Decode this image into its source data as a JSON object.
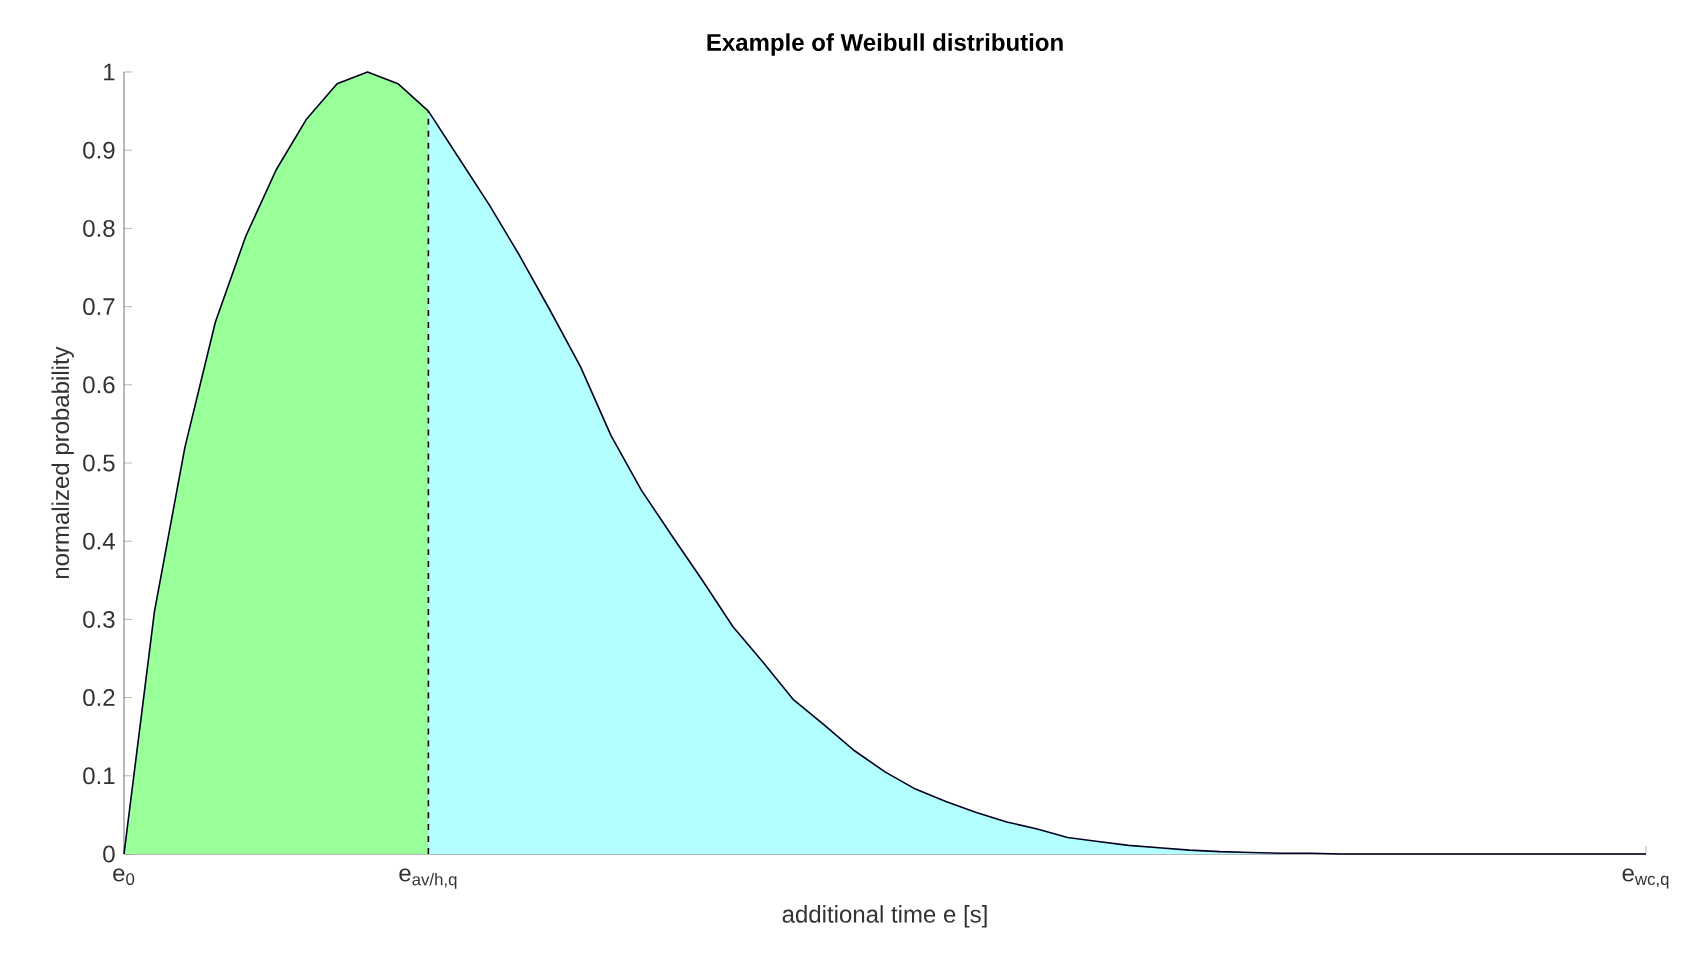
{
  "chart_data": {
    "type": "area",
    "title": "Example of Weibull distribution",
    "xlabel": "additional time e [s]",
    "ylabel": "normalized probability",
    "categories": [
      "e$_{0}$",
      null,
      null,
      null,
      null,
      null,
      null,
      null,
      null,
      null,
      "e$_{av/h,q}$",
      null,
      null,
      null,
      null,
      null,
      null,
      null,
      null,
      null,
      null,
      null,
      null,
      null,
      null,
      null,
      null,
      null,
      null,
      null,
      null,
      null,
      null,
      null,
      null,
      null,
      null,
      null,
      null,
      null,
      null,
      null,
      null,
      null,
      null,
      null,
      null,
      null,
      null,
      null,
      "e$_{wc,q}$"
    ],
    "ylim": [
      0,
      1
    ],
    "yticks": [
      0,
      0.1,
      0.2,
      0.3,
      0.4,
      0.5,
      0.6,
      0.7,
      0.8,
      0.9,
      1
    ],
    "series": [
      {
        "color": "#99ff99",
        "values": [
          0,
          0.31,
          0.52,
          0.68,
          0.79,
          0.875,
          0.94,
          0.985,
          1.0,
          0.985,
          0.95,
          null,
          null,
          null,
          null,
          null,
          null,
          null,
          null,
          null,
          null,
          null,
          null,
          null,
          null,
          null,
          null,
          null,
          null,
          null,
          null,
          null,
          null,
          null,
          null,
          null,
          null,
          null,
          null,
          null,
          null,
          null,
          null,
          null,
          null,
          null,
          null,
          null,
          null,
          null,
          null
        ]
      },
      {
        "color": "#b3ffff",
        "values": [
          null,
          null,
          null,
          null,
          null,
          null,
          null,
          null,
          null,
          null,
          0.95,
          0.89,
          0.83,
          0.765,
          0.695,
          0.623,
          0.535,
          0.465,
          0.407,
          0.35,
          0.291,
          0.245,
          0.197,
          0.165,
          0.132,
          0.105,
          0.083,
          0.067,
          0.053,
          0.041,
          0.032,
          0.021,
          0.016,
          0.011,
          0.008,
          0.005,
          0.003,
          0.002,
          0.001,
          0.001,
          0,
          0,
          0,
          0,
          0,
          0,
          0,
          0,
          0,
          0,
          0
        ]
      },
      {
        "type": "line",
        "color": "#000022",
        "values": [
          0,
          0.31,
          0.52,
          0.68,
          0.79,
          0.875,
          0.94,
          0.985,
          1.0,
          0.985,
          0.95,
          0.89,
          0.83,
          0.765,
          0.695,
          0.623,
          0.535,
          0.465,
          0.407,
          0.35,
          0.291,
          0.245,
          0.197,
          0.165,
          0.132,
          0.105,
          0.083,
          0.067,
          0.053,
          0.041,
          0.032,
          0.021,
          0.016,
          0.011,
          0.008,
          0.005,
          0.003,
          0.002,
          0.001,
          0.001,
          0,
          0,
          0,
          0,
          0,
          0,
          0,
          0,
          0,
          0,
          0
        ]
      }
    ],
    "ref_lines": [
      {
        "axis": "x",
        "value": "e$_{av/h,q}$",
        "color": "#000000",
        "line_style": "dashed"
      }
    ]
  }
}
